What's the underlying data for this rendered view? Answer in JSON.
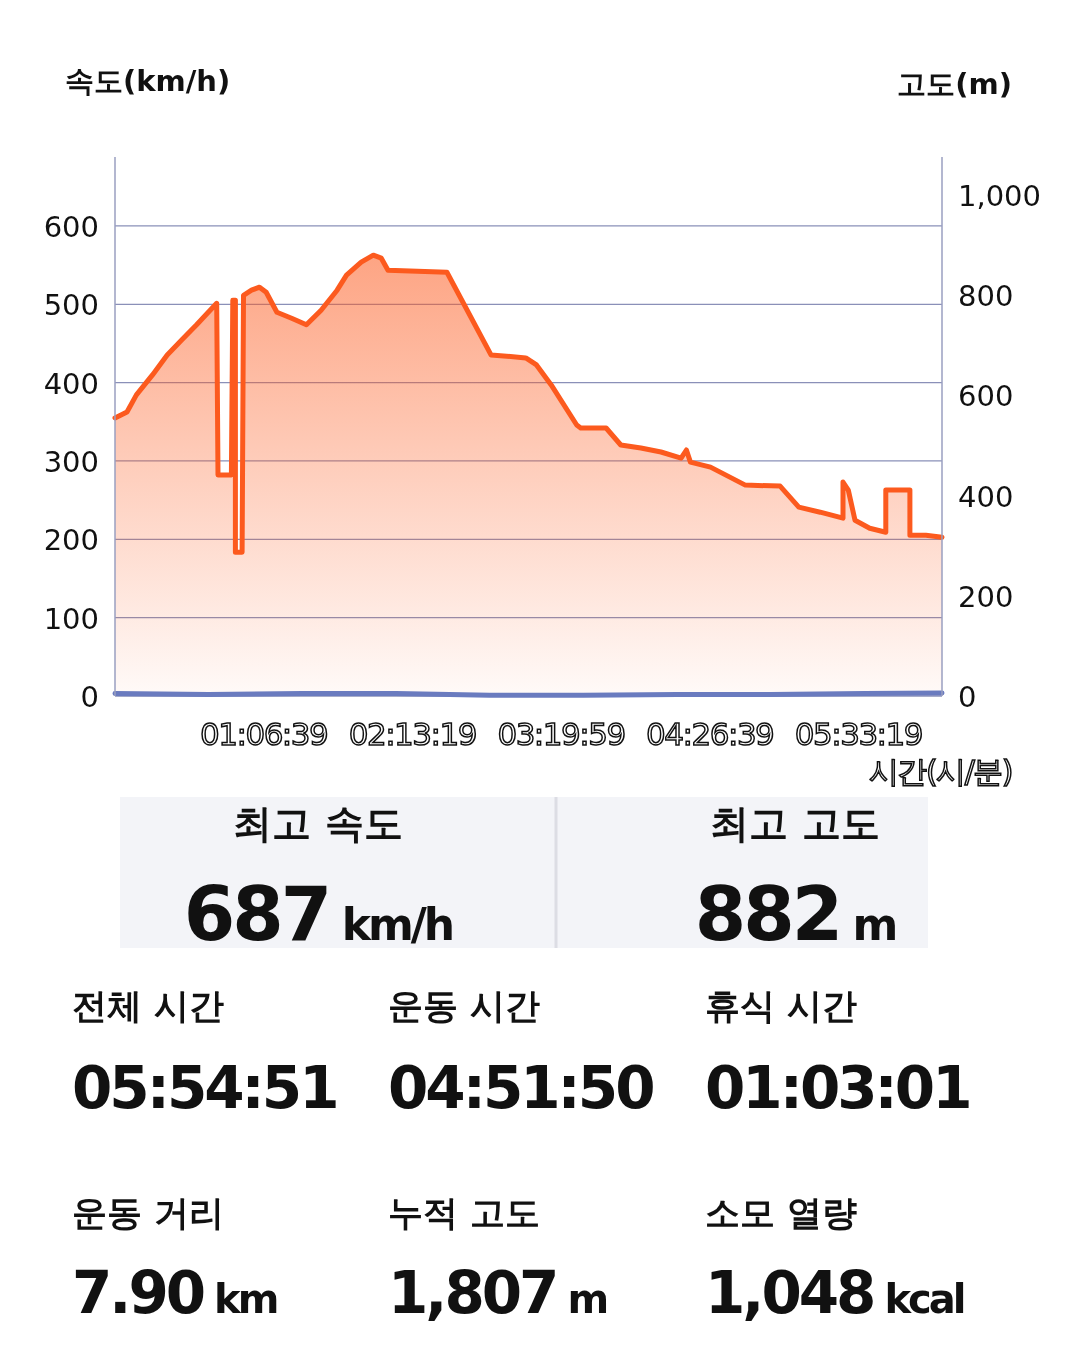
{
  "chart_data": [
    {
      "type": "area",
      "ylabel": "속도(km/h)",
      "y2label": "고도(m)",
      "xlabel": "시간(시/분)",
      "xlim": [
        0,
        6.18
      ],
      "xticks": [
        {
          "value": 1.1108,
          "label": "01:06:39"
        },
        {
          "value": 2.2219,
          "label": "02:13:19"
        },
        {
          "value": 3.3331,
          "label": "03:19:59"
        },
        {
          "value": 4.4442,
          "label": "04:26:39"
        },
        {
          "value": 5.5553,
          "label": "05:33:19"
        }
      ],
      "ylim": [
        0,
        688
      ],
      "yticks": [
        0,
        100,
        200,
        300,
        400,
        500,
        600
      ],
      "y2lim": [
        0,
        1076
      ],
      "y2ticks": [
        0,
        200,
        400,
        600,
        800,
        {
          "value": 1000,
          "label": "1,000"
        }
      ],
      "grid": "y",
      "series": [
        {
          "type": "area",
          "axis": "y2",
          "color": "#fc5a1e",
          "x": [
            0,
            0.09,
            0.16,
            0.28,
            0.39,
            0.5,
            0.61,
            0.76,
            0.77,
            0.87,
            0.88,
            0.9,
            0.9,
            0.95,
            0.96,
            1.02,
            1.08,
            1.13,
            1.21,
            1.32,
            1.43,
            1.54,
            1.66,
            1.73,
            1.84,
            1.93,
            1.99,
            2.04,
            2.48,
            2.81,
            3.07,
            3.15,
            3.26,
            3.45,
            3.48,
            3.67,
            3.78,
            3.93,
            4.08,
            4.23,
            4.27,
            4.3,
            4.45,
            4.71,
            4.97,
            5.11,
            5.27,
            5.44,
            5.44,
            5.48,
            5.53,
            5.64,
            5.76,
            5.76,
            5.94,
            5.94,
            6.06,
            6.18
          ],
          "values": [
            555,
            567,
            601,
            641,
            681,
            711,
            741,
            784,
            441,
            441,
            790,
            790,
            287,
            287,
            800,
            810,
            816,
            806,
            766,
            754,
            741,
            770,
            810,
            840,
            866,
            880,
            874,
            850,
            846,
            681,
            675,
            661,
            621,
            541,
            535,
            535,
            501,
            495,
            487,
            475,
            491,
            467,
            457,
            421,
            419,
            377,
            367,
            355,
            427,
            411,
            351,
            335,
            327,
            411,
            411,
            321,
            321,
            317
          ]
        },
        {
          "type": "line",
          "color": "#6a7bbf",
          "x": [
            0,
            0.7,
            1.4,
            2.1,
            2.8,
            3.5,
            4.2,
            4.9,
            5.6,
            6.18
          ],
          "values": [
            3,
            2,
            3,
            3,
            1,
            1,
            2,
            2,
            3,
            4
          ]
        }
      ]
    },
    {
      "type": "other",
      "annotations": [
        "최고 속도",
        "687 km/h",
        "최고 고도",
        "882 m",
        "전체 시간",
        "05:54:51",
        "운동 시간",
        "04:51:50",
        "휴식 시간",
        "01:03:01",
        "운동 거리",
        "7.90 km",
        "누적 고도",
        "1,807 m",
        "소모 열량",
        "1,048 kcal"
      ]
    }
  ]
}
